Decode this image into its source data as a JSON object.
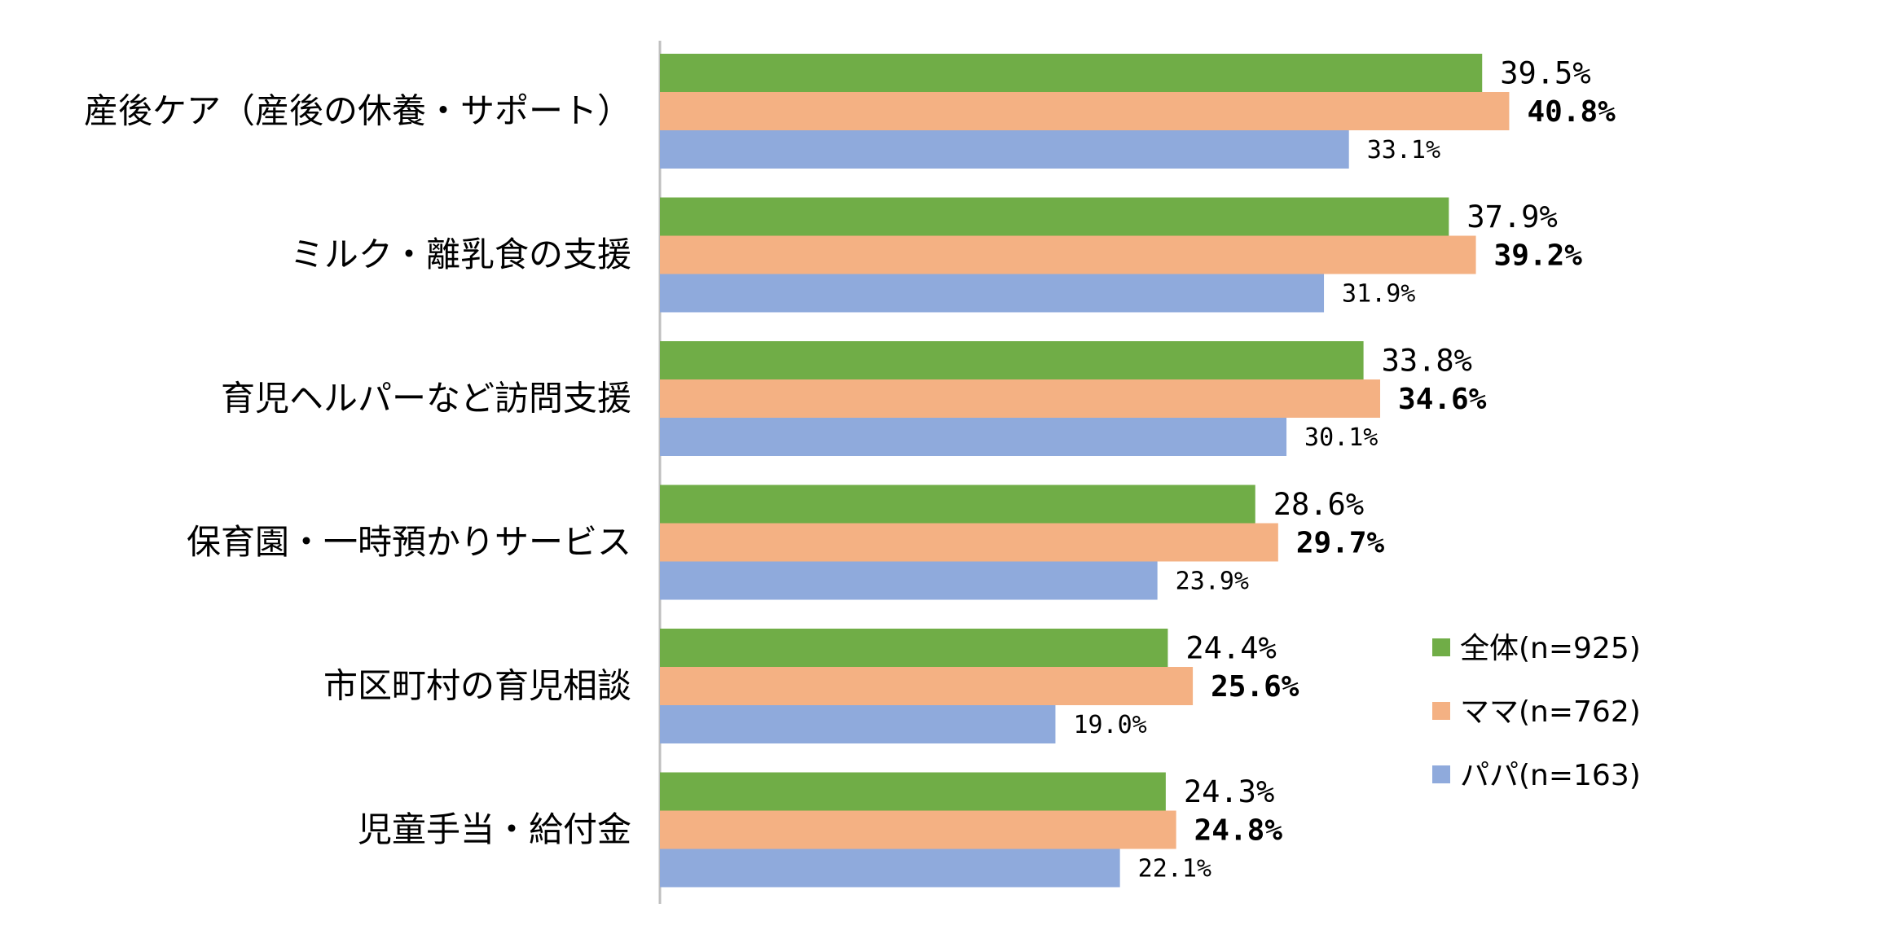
{
  "chart_data": {
    "type": "bar",
    "orientation": "horizontal",
    "categories": [
      "産後ケア（産後の休養・サポート）",
      "ミルク・離乳食の支援",
      "育児ヘルパーなど訪問支援",
      "保育園・一時預かりサービス",
      "市区町村の育児相談",
      "児童手当・給付金"
    ],
    "series": [
      {
        "name": "全体(n=925)",
        "color": "#70AD47",
        "values": [
          39.5,
          37.9,
          33.8,
          28.6,
          24.4,
          24.3
        ]
      },
      {
        "name": "ママ(n=762)",
        "color": "#F4B183",
        "values": [
          40.8,
          39.2,
          34.6,
          29.7,
          25.6,
          24.8
        ]
      },
      {
        "name": "パパ(n=163)",
        "color": "#8FAADC",
        "values": [
          33.1,
          31.9,
          30.1,
          23.9,
          19.0,
          22.1
        ]
      }
    ],
    "value_labels": [
      [
        "39.5%",
        "37.9%",
        "33.8%",
        "28.6%",
        "24.4%",
        "24.3%"
      ],
      [
        "40.8%",
        "39.2%",
        "34.6%",
        "29.7%",
        "25.6%",
        "24.8%"
      ],
      [
        "33.1%",
        "31.9%",
        "30.1%",
        "23.9%",
        "19.0%",
        "22.1%"
      ]
    ],
    "xlim": [
      0,
      45
    ],
    "legend_position": "bottom-right",
    "grid": false
  }
}
